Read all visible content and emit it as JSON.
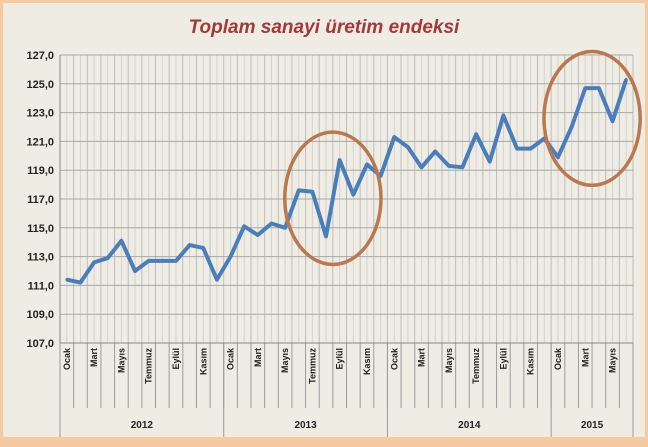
{
  "chart_data": {
    "type": "line",
    "title": "Toplam sanayi üretim endeksi",
    "xlabel": "",
    "ylabel": "",
    "ylim": [
      107,
      127
    ],
    "y_ticks": [
      "107,0",
      "109,0",
      "111,0",
      "113,0",
      "115,0",
      "117,0",
      "119,0",
      "121,0",
      "123,0",
      "125,0",
      "127,0"
    ],
    "grid": true,
    "legend": "none",
    "line_color": "#4a7ebb",
    "highlight_color": "#b9784f",
    "years": [
      {
        "label": "2012",
        "months": 12
      },
      {
        "label": "2013",
        "months": 12
      },
      {
        "label": "2014",
        "months": 12
      },
      {
        "label": "2015",
        "months": 6
      }
    ],
    "month_labels": [
      "Ocak",
      "",
      "Mart",
      "",
      "Mayıs",
      "",
      "Temmuz",
      "",
      "Eylül",
      "",
      "Kasım",
      ""
    ],
    "series": [
      {
        "values": [
          111.4,
          111.2,
          112.6,
          112.9,
          114.1,
          112.0,
          112.7,
          112.7,
          112.7,
          113.8,
          113.6,
          111.4,
          113.0,
          115.1,
          114.5,
          115.3,
          115.0,
          117.6,
          117.5,
          114.4,
          119.7,
          117.3,
          119.4,
          118.6,
          121.3,
          120.6,
          119.2,
          120.3,
          119.3,
          119.2,
          121.5,
          119.6,
          122.8,
          120.5,
          120.5,
          121.2,
          119.9,
          122.0,
          124.7,
          124.7,
          122.4,
          125.3
        ]
      }
    ],
    "highlights": [
      {
        "from_index": 17,
        "to_index": 22
      },
      {
        "from_index": 36,
        "to_index": 41
      }
    ]
  }
}
